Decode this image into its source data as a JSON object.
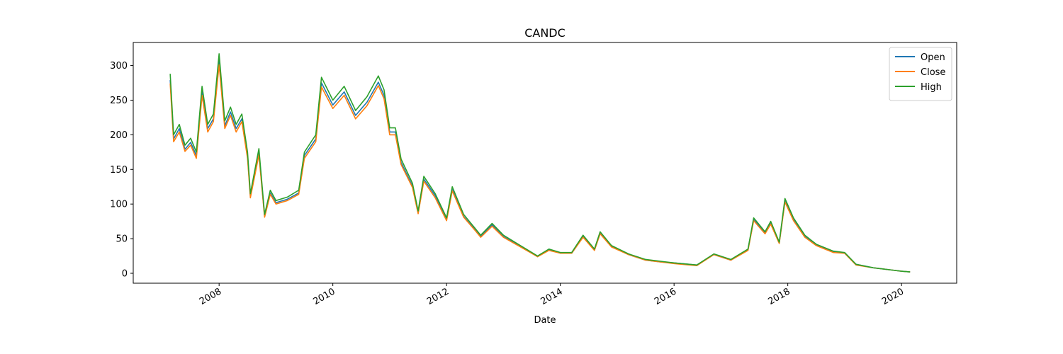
{
  "chart_data": {
    "type": "line",
    "title": "CANDC",
    "x_label": "Date",
    "x": [
      2007.14,
      2007.2,
      2007.3,
      2007.4,
      2007.5,
      2007.6,
      2007.7,
      2007.8,
      2007.9,
      2008.0,
      2008.1,
      2008.2,
      2008.3,
      2008.4,
      2008.5,
      2008.55,
      2008.7,
      2008.8,
      2008.9,
      2009.0,
      2009.2,
      2009.4,
      2009.5,
      2009.7,
      2009.8,
      2010.0,
      2010.2,
      2010.4,
      2010.6,
      2010.8,
      2010.9,
      2011.0,
      2011.1,
      2011.2,
      2011.4,
      2011.5,
      2011.6,
      2011.8,
      2012.0,
      2012.1,
      2012.3,
      2012.5,
      2012.6,
      2012.8,
      2013.0,
      2013.3,
      2013.6,
      2013.8,
      2014.0,
      2014.2,
      2014.4,
      2014.6,
      2014.7,
      2014.9,
      2015.2,
      2015.5,
      2015.8,
      2016.0,
      2016.4,
      2016.7,
      2017.0,
      2017.3,
      2017.4,
      2017.6,
      2017.7,
      2017.85,
      2017.95,
      2018.1,
      2018.3,
      2018.5,
      2018.8,
      2019.0,
      2019.2,
      2019.5,
      2019.8,
      2020.0,
      2020.15
    ],
    "series": [
      {
        "name": "Open",
        "color": "#1f77b4",
        "values": [
          279,
          194,
          209,
          179,
          189,
          170,
          262,
          209,
          223,
          307,
          213,
          233,
          209,
          223,
          170,
          112,
          175,
          82,
          116,
          102,
          107,
          116,
          170,
          194,
          275,
          243,
          262,
          228,
          247,
          276,
          257,
          204,
          204,
          160,
          126,
          87,
          136,
          112,
          78,
          121,
          82,
          63,
          53,
          70,
          53,
          39,
          24,
          34,
          29,
          29,
          53,
          34,
          58,
          39,
          27,
          19,
          16,
          15,
          12,
          27,
          19,
          34,
          78,
          58,
          73,
          44,
          105,
          78,
          53,
          41,
          31,
          29,
          13,
          8,
          5,
          3,
          2
        ]
      },
      {
        "name": "Close",
        "color": "#ff7f0e",
        "values": [
          274,
          190,
          204,
          176,
          185,
          166,
          257,
          204,
          219,
          301,
          209,
          228,
          204,
          219,
          166,
          109,
          171,
          81,
          114,
          100,
          105,
          114,
          166,
          190,
          269,
          238,
          257,
          223,
          242,
          271,
          252,
          200,
          200,
          157,
          124,
          86,
          133,
          109,
          76,
          119,
          81,
          62,
          52,
          68,
          52,
          38,
          24,
          33,
          29,
          29,
          52,
          33,
          57,
          38,
          27,
          19,
          16,
          14,
          11,
          27,
          19,
          33,
          76,
          57,
          71,
          43,
          103,
          76,
          52,
          40,
          30,
          29,
          12,
          8,
          5,
          3,
          2
        ]
      },
      {
        "name": "High",
        "color": "#2ca02c",
        "values": [
          288,
          200,
          215,
          185,
          195,
          175,
          270,
          215,
          230,
          317,
          220,
          240,
          215,
          230,
          175,
          115,
          180,
          85,
          120,
          105,
          110,
          120,
          175,
          200,
          283,
          250,
          270,
          235,
          255,
          285,
          265,
          210,
          210,
          165,
          130,
          90,
          140,
          115,
          80,
          125,
          85,
          65,
          55,
          72,
          55,
          40,
          25,
          35,
          30,
          30,
          55,
          35,
          60,
          40,
          28,
          20,
          17,
          15,
          12,
          28,
          20,
          35,
          80,
          60,
          75,
          45,
          108,
          80,
          55,
          42,
          32,
          30,
          13,
          8,
          5,
          3,
          2
        ]
      }
    ],
    "xlim": [
      2006.49,
      2020.97
    ],
    "xticks": [
      2008,
      2010,
      2012,
      2014,
      2016,
      2018,
      2020
    ],
    "ylim": [
      -14.3,
      333.3
    ],
    "yticks": [
      0,
      50,
      100,
      150,
      200,
      250,
      300
    ],
    "legend": "upper right",
    "grid": false
  }
}
